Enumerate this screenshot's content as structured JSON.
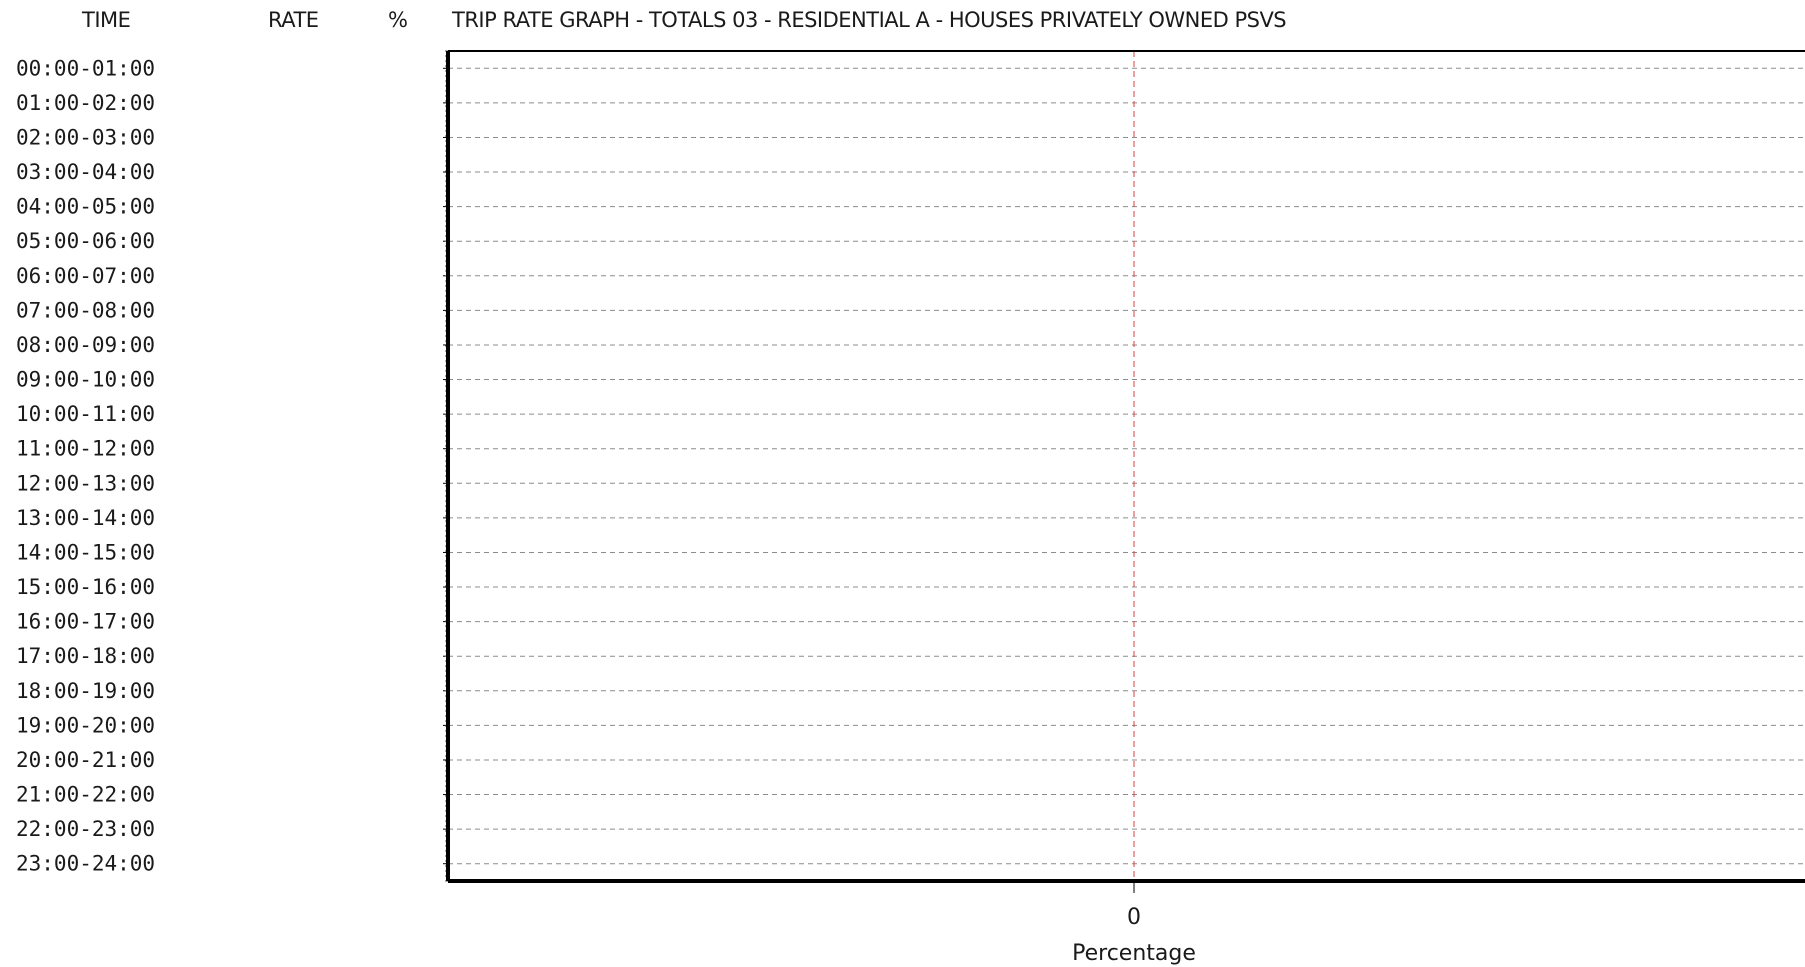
{
  "header": {
    "time": "TIME",
    "rate": "RATE",
    "percent": "%",
    "title": "TRIP RATE GRAPH - TOTALS   03 - RESIDENTIAL   A - HOUSES PRIVATELY OWNED     PSVS"
  },
  "chart_data": {
    "type": "bar",
    "orientation": "horizontal",
    "categories": [
      "00:00-01:00",
      "01:00-02:00",
      "02:00-03:00",
      "03:00-04:00",
      "04:00-05:00",
      "05:00-06:00",
      "06:00-07:00",
      "07:00-08:00",
      "08:00-09:00",
      "09:00-10:00",
      "10:00-11:00",
      "11:00-12:00",
      "12:00-13:00",
      "13:00-14:00",
      "14:00-15:00",
      "15:00-16:00",
      "16:00-17:00",
      "17:00-18:00",
      "18:00-19:00",
      "19:00-20:00",
      "20:00-21:00",
      "21:00-22:00",
      "22:00-23:00",
      "23:00-24:00"
    ],
    "rate": [],
    "percent": [],
    "xlabel": "Percentage",
    "x_ticks": [
      "0"
    ],
    "grid": true,
    "colors": {
      "axis": "#000000",
      "grid": "#8c8c8c",
      "zero_line": "#d94040",
      "text": "#1a1a1a"
    }
  }
}
